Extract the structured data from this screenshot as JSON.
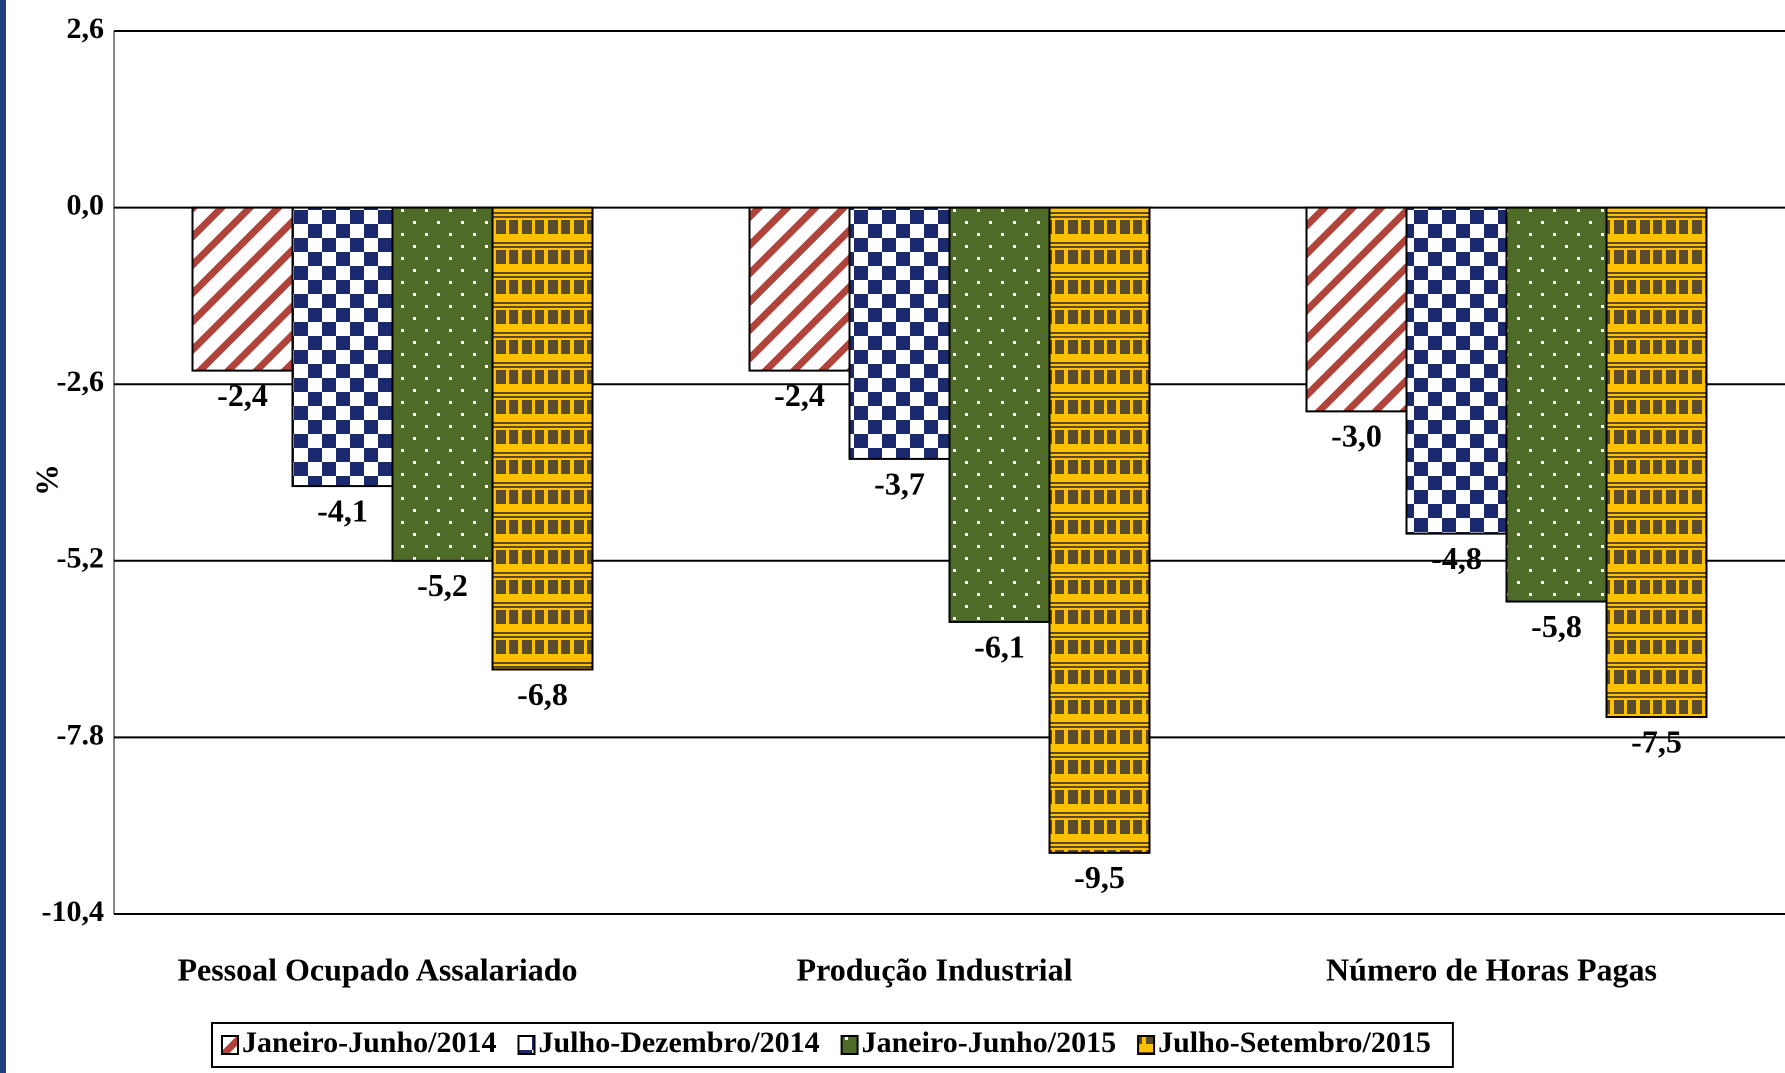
{
  "chart_data": {
    "type": "bar",
    "y_label": "%",
    "categories": [
      "Pessoal Ocupado Assalariado",
      "Produção Industrial",
      "Número de Horas Pagas"
    ],
    "series": [
      {
        "name": "Janeiro-Junho/2014",
        "color": "#b0443a",
        "values": [
          -2.4,
          -2.4,
          -3.0
        ],
        "value_labels": [
          "-2,4",
          "-2,4",
          "-3,0"
        ]
      },
      {
        "name": "Julho-Dezembro/2014",
        "color": "#1b2a6e",
        "values": [
          -4.1,
          -3.7,
          -4.8
        ],
        "value_labels": [
          "-4,1",
          "-3,7",
          "-4,8"
        ]
      },
      {
        "name": "Janeiro-Junho/2015",
        "color": "#4e6b28",
        "values": [
          -5.2,
          -6.1,
          -5.8
        ],
        "value_labels": [
          "-5,2",
          "-6,1",
          "-5,8"
        ]
      },
      {
        "name": "Julho-Setembro/2015",
        "color": "#ffc000",
        "values": [
          -6.8,
          -9.5,
          -7.5
        ],
        "value_labels": [
          "-6,8",
          "-9,5",
          "-7,5"
        ]
      }
    ],
    "ylim": [
      -10.4,
      2.6
    ],
    "yticks": [
      {
        "value": 2.6,
        "label": "2,6"
      },
      {
        "value": 0,
        "label": "0,0"
      },
      {
        "value": -2.6,
        "label": "-2,6"
      },
      {
        "value": -5.2,
        "label": "-5,2"
      },
      -7.8,
      {
        "value": -10.4,
        "label": "-10,4"
      }
    ],
    "grid": true
  }
}
